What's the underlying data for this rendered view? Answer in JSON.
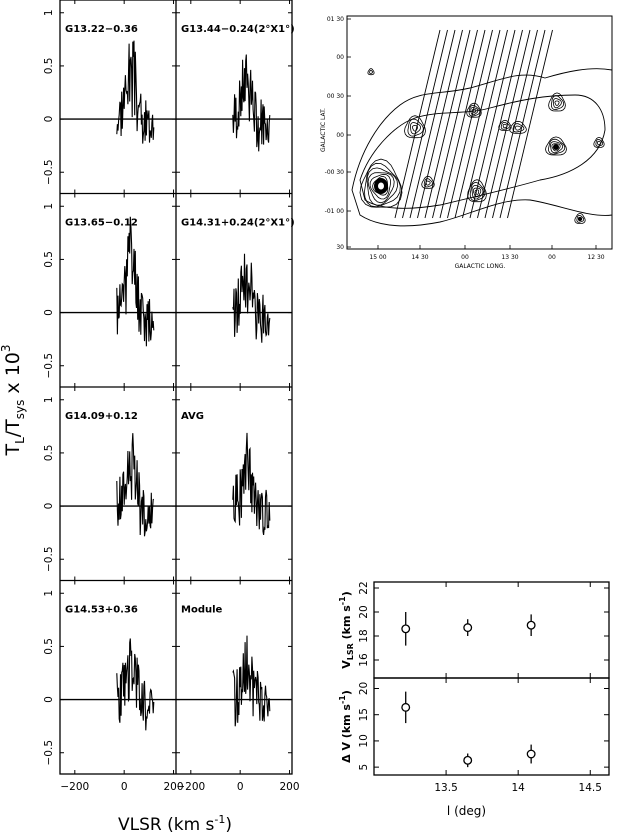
{
  "figure": {
    "ylabel_main": "T",
    "ylabel_sub1": "L",
    "ylabel_mid": "/T",
    "ylabel_sub2": "sys",
    "ylabel_tail": " x 10",
    "ylabel_sup": "3",
    "xlabel": "VLSR  (km s",
    "xlabel_sup": "-1",
    "xlabel_tail": ")"
  },
  "chart_data": [
    {
      "type": "line",
      "name": "spectra-grid",
      "x_ticks": [
        -200,
        0,
        200
      ],
      "xlim": [
        -260,
        210
      ],
      "y_ticks": [
        -0.5,
        0,
        0.5,
        1
      ],
      "ylim": [
        -0.7,
        1.12
      ],
      "panels": [
        {
          "label": "G13.22−0.36",
          "row": 0,
          "col": 0,
          "amp": 0.68,
          "seed": 3
        },
        {
          "label": "G13.44−0.24(2°X1°)",
          "row": 0,
          "col": 1,
          "amp": 0.58,
          "seed": 7
        },
        {
          "label": "G13.65−0.12",
          "row": 1,
          "col": 0,
          "amp": 0.8,
          "seed": 11
        },
        {
          "label": "G14.31+0.24(2°X1°)",
          "row": 1,
          "col": 1,
          "amp": 0.5,
          "seed": 13
        },
        {
          "label": "G14.09+0.12",
          "row": 2,
          "col": 0,
          "amp": 0.56,
          "seed": 17
        },
        {
          "label": "AVG",
          "row": 2,
          "col": 1,
          "amp": 0.52,
          "seed": 19
        },
        {
          "label": "G14.53+0.36",
          "row": 3,
          "col": 0,
          "amp": 0.45,
          "seed": 23
        },
        {
          "label": "Module",
          "row": 3,
          "col": 1,
          "amp": 0.42,
          "seed": 29
        }
      ]
    },
    {
      "type": "scatter",
      "name": "vlsr-vs-l",
      "x": [
        13.22,
        13.65,
        14.09
      ],
      "y": [
        18.6,
        18.7,
        18.9
      ],
      "yerr": [
        1.4,
        0.7,
        0.9
      ],
      "ylim": [
        14.5,
        22.5
      ],
      "y_ticks": [
        16,
        18,
        20,
        22
      ],
      "xlim": [
        13.0,
        14.63
      ],
      "ylabel": "V",
      "ylabel_sub": "LSR",
      "ylabel_unit": "(km s",
      "ylabel_sup": "-1",
      "ylabel_close": ")"
    },
    {
      "type": "scatter",
      "name": "dv-vs-l",
      "x": [
        13.22,
        13.65,
        14.09
      ],
      "y": [
        16.4,
        6.3,
        7.5
      ],
      "yerr": [
        3.0,
        1.3,
        1.8
      ],
      "ylim": [
        3.5,
        22
      ],
      "y_ticks": [
        5,
        10,
        15,
        20
      ],
      "xlim": [
        13.0,
        14.63
      ],
      "x_ticks": [
        13.5,
        14,
        14.5
      ],
      "xlabel": "l (deg)",
      "ylabel": "Δ V (km s",
      "ylabel_sup": "-1",
      "ylabel_close": ")"
    }
  ],
  "map": {
    "ylabel": "GALACTIC LAT.",
    "xlabel": "GALACTIC LONG.",
    "lat_ticks": [
      "01 30",
      "00",
      "00 30",
      "00",
      "-00 30",
      "-01 00",
      "30"
    ],
    "long_ticks": [
      "15 00",
      "14 30",
      "00",
      "13 30",
      "00",
      "12 30"
    ]
  }
}
